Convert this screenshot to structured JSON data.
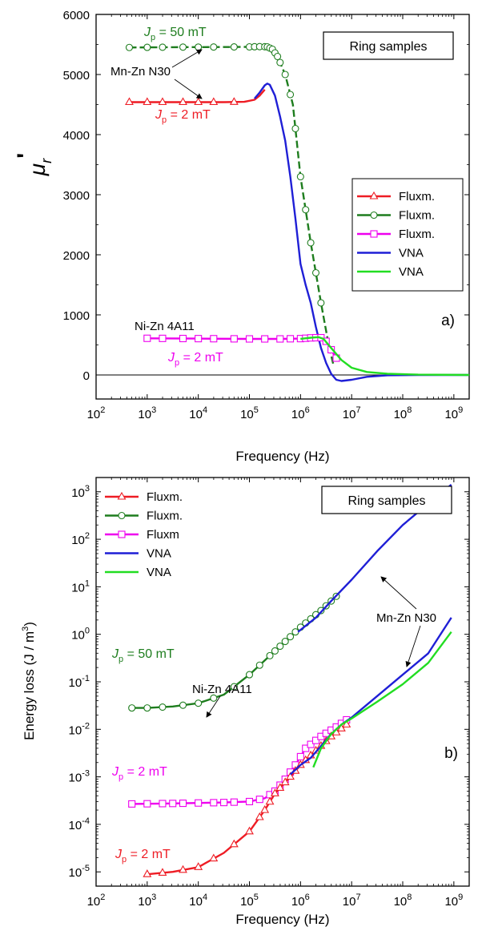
{
  "chart_data": [
    {
      "type": "line",
      "panel_label": "a)",
      "xlabel": "Frequency (Hz)",
      "ylabel": "μr'",
      "ylabel_main": "μ",
      "ylabel_sub": "r",
      "ylabel_prime": "'",
      "xscale": "log",
      "xlim_exp": [
        2,
        9.3
      ],
      "ylim": [
        -400,
        6000
      ],
      "x_tick_exponents": [
        2,
        3,
        4,
        5,
        6,
        7,
        8,
        9
      ],
      "y_ticks": [
        0,
        1000,
        2000,
        3000,
        4000,
        5000,
        6000
      ],
      "y_tick_labels": [
        "0",
        "1000",
        "2000",
        "3000",
        "4000",
        "5000",
        "6000"
      ],
      "zero_line": true,
      "box_label": "Ring samples",
      "legend_position": "right",
      "legend": [
        {
          "label": "Fluxm.",
          "color": "#ee1c24",
          "marker": "triangle"
        },
        {
          "label": "Fluxm.",
          "color": "#1e7d1e",
          "marker": "circle"
        },
        {
          "label": "Fluxm.",
          "color": "#ee00ee",
          "marker": "square"
        },
        {
          "label": "VNA",
          "color": "#1f1fd6",
          "marker": "none"
        },
        {
          "label": "VNA",
          "color": "#22dd22",
          "marker": "none"
        }
      ],
      "annotations": [
        {
          "text": "Mn-Zn N30",
          "color": "#000000"
        },
        {
          "text": "Ni-Zn 4A11",
          "color": "#000000"
        },
        {
          "text": "J",
          "sub": "p",
          "rest": " = 50 mT",
          "color": "#1e7d1e"
        },
        {
          "text": "J",
          "sub": "p",
          "rest": " = 2 mT",
          "color": "#ee1c24"
        },
        {
          "text": "J",
          "sub": "p",
          "rest": " = 2 mT",
          "color": "#ee00ee"
        }
      ],
      "series": [
        {
          "color": "#1e7d1e",
          "marker": "circle",
          "dashed": true,
          "points": [
            [
              2.65,
              5450
            ],
            [
              3.5,
              5455
            ],
            [
              4.5,
              5458
            ],
            [
              5.0,
              5460
            ],
            [
              5.25,
              5465
            ],
            [
              5.35,
              5460
            ],
            [
              5.45,
              5420
            ],
            [
              5.55,
              5300
            ],
            [
              5.7,
              5000
            ],
            [
              5.85,
              4500
            ],
            [
              6.0,
              3300
            ],
            [
              6.2,
              2200
            ],
            [
              6.4,
              1200
            ],
            [
              6.55,
              500
            ],
            [
              6.65,
              150
            ]
          ],
          "marker_x": [
            2.65,
            3.0,
            3.3,
            3.7,
            4.0,
            4.3,
            4.7,
            5.0,
            5.1,
            5.2,
            5.3,
            5.35,
            5.4,
            5.45,
            5.5,
            5.55,
            5.6,
            5.7,
            5.8,
            5.9,
            6.0,
            6.1,
            6.2,
            6.3,
            6.4
          ]
        },
        {
          "color": "#ee1c24",
          "marker": "triangle",
          "points": [
            [
              2.65,
              4540
            ],
            [
              3.5,
              4540
            ],
            [
              4.5,
              4540
            ],
            [
              4.9,
              4545
            ],
            [
              5.1,
              4580
            ],
            [
              5.2,
              4650
            ],
            [
              5.3,
              4750
            ]
          ],
          "marker_x": [
            2.65,
            3.0,
            3.3,
            3.7,
            4.0,
            4.3,
            4.7
          ]
        },
        {
          "color": "#1f1fd6",
          "marker": "none",
          "points": [
            [
              5.1,
              4600
            ],
            [
              5.2,
              4700
            ],
            [
              5.3,
              4820
            ],
            [
              5.35,
              4850
            ],
            [
              5.4,
              4830
            ],
            [
              5.5,
              4650
            ],
            [
              5.6,
              4300
            ],
            [
              5.7,
              3900
            ],
            [
              5.8,
              3300
            ],
            [
              5.9,
              2600
            ],
            [
              6.0,
              1850
            ],
            [
              6.1,
              1500
            ],
            [
              6.2,
              1200
            ],
            [
              6.3,
              800
            ],
            [
              6.4,
              450
            ],
            [
              6.5,
              200
            ],
            [
              6.6,
              20
            ],
            [
              6.7,
              -80
            ],
            [
              6.8,
              -100
            ],
            [
              7.0,
              -80
            ],
            [
              7.3,
              -30
            ],
            [
              7.7,
              -5
            ],
            [
              8.3,
              0
            ],
            [
              9.3,
              0
            ]
          ]
        },
        {
          "color": "#ee00ee",
          "marker": "square",
          "points": [
            [
              3.0,
              610
            ],
            [
              4.0,
              605
            ],
            [
              5.0,
              600
            ],
            [
              5.6,
              600
            ],
            [
              6.0,
              605
            ],
            [
              6.25,
              620
            ],
            [
              6.4,
              620
            ],
            [
              6.5,
              560
            ],
            [
              6.6,
              420
            ],
            [
              6.7,
              280
            ]
          ],
          "marker_x": [
            3.0,
            3.3,
            3.7,
            4.0,
            4.3,
            4.7,
            5.0,
            5.3,
            5.6,
            5.8,
            6.0,
            6.1,
            6.2,
            6.3,
            6.4,
            6.5,
            6.6,
            6.7
          ]
        },
        {
          "color": "#22dd22",
          "marker": "none",
          "points": [
            [
              6.0,
              600
            ],
            [
              6.2,
              620
            ],
            [
              6.35,
              630
            ],
            [
              6.45,
              600
            ],
            [
              6.6,
              450
            ],
            [
              6.8,
              250
            ],
            [
              7.0,
              120
            ],
            [
              7.3,
              50
            ],
            [
              7.7,
              20
            ],
            [
              8.3,
              5
            ],
            [
              9.3,
              0
            ]
          ]
        }
      ]
    },
    {
      "type": "line",
      "panel_label": "b)",
      "xlabel": "Frequency (Hz)",
      "ylabel": "Energy loss (J / m³)",
      "ylabel_text": "Energy loss (J / m",
      "ylabel_sup": "3",
      "ylabel_end": ")",
      "xscale": "log",
      "yscale": "log",
      "xlim_exp": [
        2,
        9.3
      ],
      "ylim_exp": [
        -5.3,
        3.3
      ],
      "x_tick_exponents": [
        2,
        3,
        4,
        5,
        6,
        7,
        8,
        9
      ],
      "y_tick_exponents": [
        -5,
        -4,
        -3,
        -2,
        -1,
        0,
        1,
        2,
        3
      ],
      "box_label": "Ring samples",
      "legend_position": "top-left",
      "legend": [
        {
          "label": "Fluxm.",
          "color": "#ee1c24",
          "marker": "triangle"
        },
        {
          "label": "Fluxm.",
          "color": "#1e7d1e",
          "marker": "circle"
        },
        {
          "label": "Fluxm",
          "color": "#ee00ee",
          "marker": "square"
        },
        {
          "label": "VNA",
          "color": "#1f1fd6",
          "marker": "none"
        },
        {
          "label": "VNA",
          "color": "#22dd22",
          "marker": "none"
        }
      ],
      "annotations": [
        {
          "text": "Mn-Zn N30",
          "color": "#000000"
        },
        {
          "text": "Ni-Zn 4A11",
          "color": "#000000"
        },
        {
          "text": "J",
          "sub": "p",
          "rest": " = 50 mT",
          "color": "#1e7d1e"
        },
        {
          "text": "J",
          "sub": "p",
          "rest": " = 2 mT",
          "color": "#ee00ee"
        },
        {
          "text": "J",
          "sub": "p",
          "rest": " = 2 mT",
          "color": "#ee1c24"
        }
      ],
      "series": [
        {
          "color": "#1e7d1e",
          "marker": "circle",
          "points": [
            [
              2.7,
              -1.55
            ],
            [
              3.0,
              -1.55
            ],
            [
              3.5,
              -1.52
            ],
            [
              4.0,
              -1.45
            ],
            [
              4.5,
              -1.27
            ],
            [
              5.0,
              -0.85
            ],
            [
              5.3,
              -0.55
            ],
            [
              5.6,
              -0.25
            ],
            [
              6.0,
              0.15
            ],
            [
              6.4,
              0.5
            ],
            [
              6.7,
              0.8
            ]
          ],
          "marker_x": [
            2.7,
            3.0,
            3.3,
            3.7,
            4.0,
            4.3,
            4.7,
            5.0,
            5.2,
            5.4,
            5.5,
            5.6,
            5.7,
            5.8,
            5.9,
            6.0,
            6.1,
            6.2,
            6.3,
            6.4,
            6.5,
            6.6,
            6.7
          ]
        },
        {
          "color": "#1f1fd6",
          "marker": "none",
          "points": [
            [
              5.95,
              0.05
            ],
            [
              6.3,
              0.35
            ],
            [
              6.6,
              0.7
            ],
            [
              7.0,
              1.15
            ],
            [
              7.5,
              1.75
            ],
            [
              8.0,
              2.3
            ],
            [
              8.5,
              2.75
            ],
            [
              8.95,
              3.15
            ]
          ]
        },
        {
          "color": "#ee00ee",
          "marker": "square",
          "points": [
            [
              2.7,
              -3.57
            ],
            [
              3.5,
              -3.56
            ],
            [
              4.0,
              -3.55
            ],
            [
              4.5,
              -3.54
            ],
            [
              5.0,
              -3.52
            ],
            [
              5.3,
              -3.45
            ],
            [
              5.5,
              -3.3
            ],
            [
              5.7,
              -3.05
            ],
            [
              5.9,
              -2.75
            ],
            [
              6.1,
              -2.4
            ],
            [
              6.4,
              -2.15
            ],
            [
              6.7,
              -1.95
            ],
            [
              6.9,
              -1.8
            ]
          ],
          "marker_x": [
            2.7,
            3.0,
            3.3,
            3.5,
            3.7,
            4.0,
            4.3,
            4.5,
            4.7,
            5.0,
            5.2,
            5.4,
            5.5,
            5.6,
            5.7,
            5.8,
            5.9,
            6.0,
            6.1,
            6.2,
            6.3,
            6.4,
            6.5,
            6.6,
            6.7,
            6.8,
            6.9
          ]
        },
        {
          "color": "#ee1c24",
          "marker": "triangle",
          "points": [
            [
              3.0,
              -5.05
            ],
            [
              3.5,
              -5.0
            ],
            [
              4.0,
              -4.9
            ],
            [
              4.5,
              -4.6
            ],
            [
              5.0,
              -4.15
            ],
            [
              5.3,
              -3.7
            ],
            [
              5.5,
              -3.35
            ],
            [
              5.8,
              -3.0
            ],
            [
              6.0,
              -2.75
            ],
            [
              6.3,
              -2.45
            ],
            [
              6.6,
              -2.15
            ],
            [
              6.9,
              -1.9
            ]
          ],
          "marker_x": [
            3.0,
            3.3,
            3.7,
            4.0,
            4.3,
            4.7,
            5.0,
            5.2,
            5.3,
            5.4,
            5.5,
            5.6,
            5.7,
            5.8,
            5.9,
            6.0,
            6.1,
            6.2,
            6.3,
            6.4,
            6.5,
            6.6,
            6.7,
            6.8,
            6.9
          ]
        },
        {
          "color": "#1f1fd6",
          "marker": "none",
          "points": [
            [
              5.8,
              -2.95
            ],
            [
              6.0,
              -2.75
            ],
            [
              6.2,
              -2.6
            ],
            [
              6.4,
              -2.35
            ],
            [
              6.6,
              -2.1
            ],
            [
              6.8,
              -1.9
            ],
            [
              7.0,
              -1.75
            ],
            [
              7.5,
              -1.3
            ],
            [
              8.0,
              -0.85
            ],
            [
              8.5,
              -0.4
            ],
            [
              8.95,
              0.35
            ]
          ]
        },
        {
          "color": "#22dd22",
          "marker": "none",
          "points": [
            [
              6.25,
              -2.8
            ],
            [
              6.4,
              -2.4
            ],
            [
              6.6,
              -2.1
            ],
            [
              6.8,
              -1.9
            ],
            [
              7.0,
              -1.77
            ],
            [
              7.5,
              -1.42
            ],
            [
              8.0,
              -1.05
            ],
            [
              8.5,
              -0.6
            ],
            [
              8.95,
              0.05
            ]
          ]
        }
      ]
    }
  ]
}
